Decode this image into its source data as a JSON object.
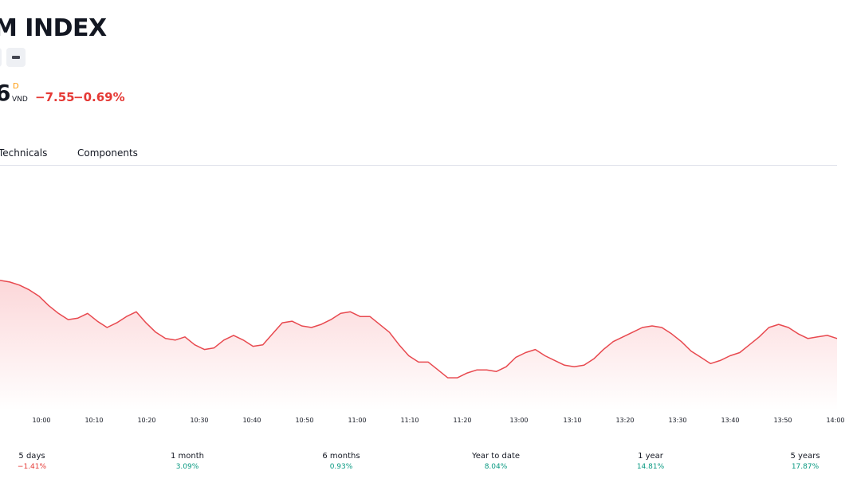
{
  "header": {
    "title": "M INDEX",
    "price": "6",
    "interval_marker": "D",
    "currency": "VND",
    "change": "−7.55",
    "change_percent": "−0.69%"
  },
  "tabs": [
    {
      "label": "Technicals"
    },
    {
      "label": "Components"
    }
  ],
  "colors": {
    "negative": "#e53935",
    "positive": "#089981",
    "line": "#e8494f",
    "area_top": "#fcd7d9"
  },
  "chart_data": {
    "type": "area",
    "title": "",
    "xlabel": "",
    "ylabel": "",
    "x_ticks": [
      "10:00",
      "10:10",
      "10:20",
      "10:30",
      "10:40",
      "10:50",
      "11:00",
      "11:10",
      "11:20",
      "13:00",
      "13:10",
      "13:20",
      "13:30",
      "13:40",
      "13:50",
      "14:00"
    ],
    "series": [
      {
        "values": [
          100.0,
          99.9,
          99.7,
          99.4,
          99.0,
          98.4,
          97.9,
          97.5,
          97.6,
          97.9,
          97.4,
          97.0,
          97.3,
          97.7,
          98.0,
          97.3,
          96.7,
          96.3,
          96.2,
          96.4,
          95.9,
          95.6,
          95.7,
          96.2,
          96.5,
          96.2,
          95.8,
          95.9,
          96.6,
          97.3,
          97.4,
          97.1,
          97.0,
          97.2,
          97.5,
          97.9,
          98.0,
          97.7,
          97.7,
          97.2,
          96.7,
          95.9,
          95.2,
          94.8,
          94.8,
          94.3,
          93.8,
          93.8,
          94.1,
          94.3,
          94.3,
          94.2,
          94.5,
          95.1,
          95.4,
          95.6,
          95.2,
          94.9,
          94.6,
          94.5,
          94.6,
          95.0,
          95.6,
          96.1,
          96.4,
          96.7,
          97.0,
          97.1,
          97.0,
          96.6,
          96.1,
          95.5,
          95.1,
          94.7,
          94.9,
          95.2,
          95.4,
          95.9,
          96.4,
          97.0,
          97.2,
          97.0,
          96.6,
          96.3,
          96.4,
          96.5,
          96.3
        ]
      }
    ],
    "grid": false,
    "legend": "none"
  },
  "performance": [
    {
      "label": "5 days",
      "value": "−1.41%",
      "trend": "negative"
    },
    {
      "label": "1 month",
      "value": "3.09%",
      "trend": "positive"
    },
    {
      "label": "6 months",
      "value": "0.93%",
      "trend": "positive"
    },
    {
      "label": "Year to date",
      "value": "8.04%",
      "trend": "positive"
    },
    {
      "label": "1 year",
      "value": "14.81%",
      "trend": "positive"
    },
    {
      "label": "5 years",
      "value": "17.87%",
      "trend": "positive"
    }
  ]
}
